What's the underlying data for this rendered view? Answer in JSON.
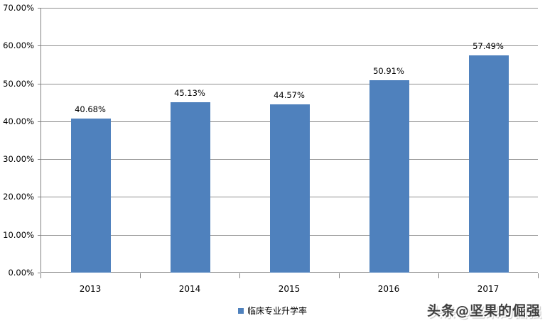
{
  "chart_data": {
    "type": "bar",
    "title": "",
    "categories": [
      "2013",
      "2014",
      "2015",
      "2016",
      "2017"
    ],
    "series": [
      {
        "name": "临床专业升学率",
        "values": [
          40.68,
          45.13,
          44.57,
          50.91,
          57.49
        ]
      }
    ],
    "value_labels": [
      "40.68%",
      "45.13%",
      "44.57%",
      "50.91%",
      "57.49%"
    ],
    "xlabel": "",
    "ylabel": "",
    "ylim": [
      0,
      70
    ],
    "ytick_step": 10,
    "ytick_labels": [
      "0.00%",
      "10.00%",
      "20.00%",
      "30.00%",
      "40.00%",
      "50.00%",
      "60.00%",
      "70.00%"
    ],
    "grid": true,
    "legend_position": "bottom"
  },
  "colors": {
    "bar": "#4f81bd",
    "gridline": "#8e8e8e",
    "axis": "#808080",
    "text": "#000000"
  },
  "watermark": {
    "text": "头条@坚果的倔强"
  }
}
